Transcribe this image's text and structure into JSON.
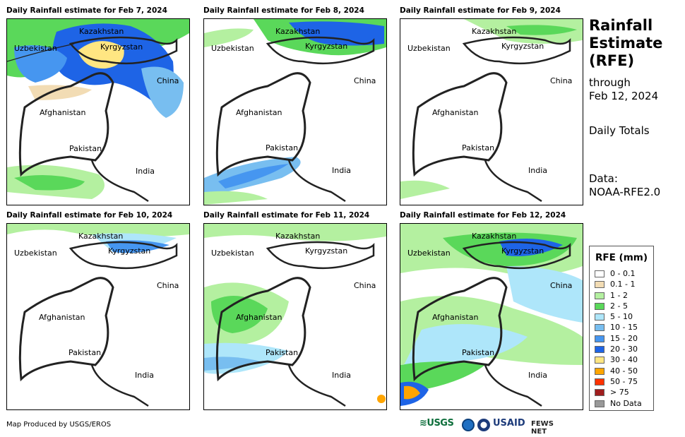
{
  "panels": [
    {
      "title": "Daily Rainfall estimate for Feb 7, 2024"
    },
    {
      "title": "Daily Rainfall estimate for Feb 8, 2024"
    },
    {
      "title": "Daily Rainfall estimate for Feb 9, 2024"
    },
    {
      "title": "Daily Rainfall estimate for Feb 10, 2024"
    },
    {
      "title": "Daily Rainfall estimate for Feb 11, 2024"
    },
    {
      "title": "Daily Rainfall estimate for Feb 12, 2024"
    }
  ],
  "map_labels": {
    "kazakhstan": "Kazakhstan",
    "uzbekistan": "Uzbekistan",
    "kyrgyzstan": "Kyrgyzstan",
    "china": "China",
    "afghanistan": "Afghanistan",
    "pakistan": "Pakistan",
    "india": "India"
  },
  "sidebar": {
    "title": "Rainfall Estimate (RFE)",
    "through_label": "through",
    "through_date": "Feb 12, 2024",
    "totals": "Daily Totals",
    "data_label": "Data:",
    "data_source": "NOAA-RFE2.0"
  },
  "legend": {
    "title": "RFE (mm)",
    "items": [
      {
        "label": "0 - 0.1",
        "color": "#ffffff"
      },
      {
        "label": "0.1 - 1",
        "color": "#f2dcb4"
      },
      {
        "label": "1 - 2",
        "color": "#b4f0a0"
      },
      {
        "label": "2 - 5",
        "color": "#5ad85a"
      },
      {
        "label": "5 - 10",
        "color": "#aee6fa"
      },
      {
        "label": "10 - 15",
        "color": "#78bef0"
      },
      {
        "label": "15 - 20",
        "color": "#4696f0"
      },
      {
        "label": "20 - 30",
        "color": "#1e64e6"
      },
      {
        "label": "30 - 40",
        "color": "#ffe682"
      },
      {
        "label": "40 - 50",
        "color": "#ffa500"
      },
      {
        "label": "50 - 75",
        "color": "#ff3200"
      },
      {
        "label": "> 75",
        "color": "#a01e1e"
      },
      {
        "label": "No Data",
        "color": "#999999"
      }
    ]
  },
  "footer": {
    "credit": "Map Produced by USGS/EROS"
  },
  "logos": {
    "usgs": "≋USGS",
    "usaid": "USAID",
    "fews": "FEWS NET"
  }
}
